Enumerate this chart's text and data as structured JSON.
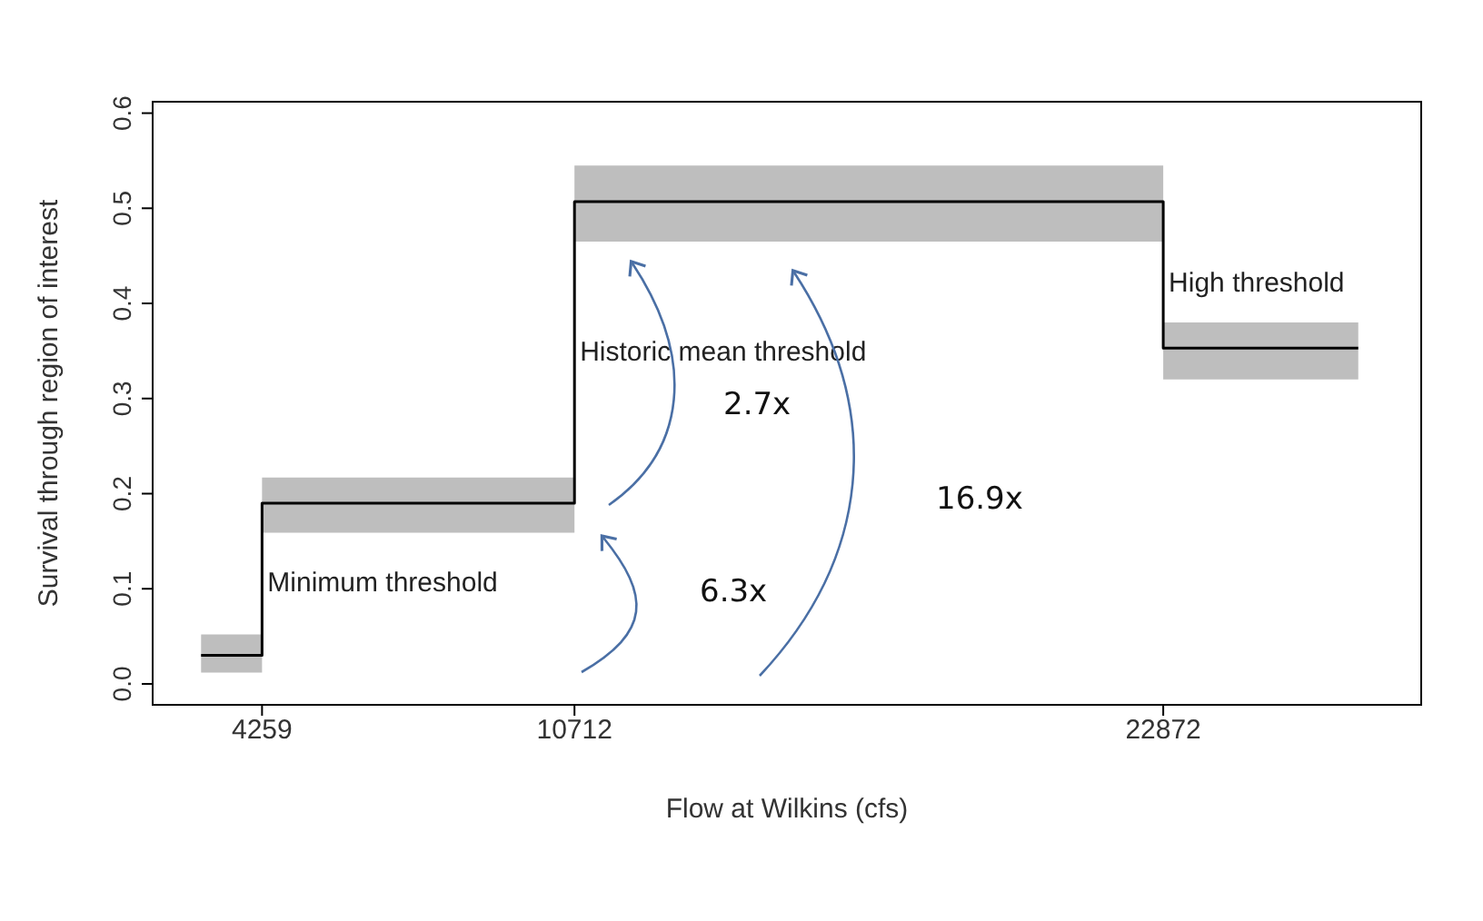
{
  "chart_data": {
    "type": "step",
    "xlabel": "Flow at Wilkins (cfs)",
    "ylabel": "Survival through region of interest",
    "xlim": [
      2000,
      28200
    ],
    "xticks": [
      4259,
      10712,
      22872
    ],
    "ylim": [
      -0.022,
      0.612
    ],
    "yticks": [
      {
        "value": 0,
        "label": "0.0"
      },
      {
        "value": 0.1,
        "label": "0.1"
      },
      {
        "value": 0.2,
        "label": "0.2"
      },
      {
        "value": 0.3,
        "label": "0.3"
      },
      {
        "value": 0.4,
        "label": "0.4"
      },
      {
        "value": 0.5,
        "label": "0.5"
      },
      {
        "value": 0.6,
        "label": "0.6"
      }
    ],
    "marker": "none",
    "line_style": "solid",
    "series": [
      {
        "color": "#000000",
        "x": [
          3000,
          4259,
          10712,
          22872,
          26900
        ],
        "values": [
          0.03,
          0.19,
          0.507,
          0.353,
          0.353
        ],
        "lower": [
          0.012,
          0.159,
          0.465,
          0.32,
          0.32
        ],
        "upper": [
          0.052,
          0.217,
          0.545,
          0.38,
          0.38
        ]
      }
    ],
    "annotations": [
      {
        "text": "Minimum threshold",
        "x": 4259,
        "y": 0.097
      },
      {
        "text": "Historic mean threshold",
        "x": 10712,
        "y": 0.34
      },
      {
        "text": "High threshold",
        "x": 22872,
        "y": 0.412
      },
      "2.7x",
      "6.3x",
      "16.9x"
    ]
  }
}
